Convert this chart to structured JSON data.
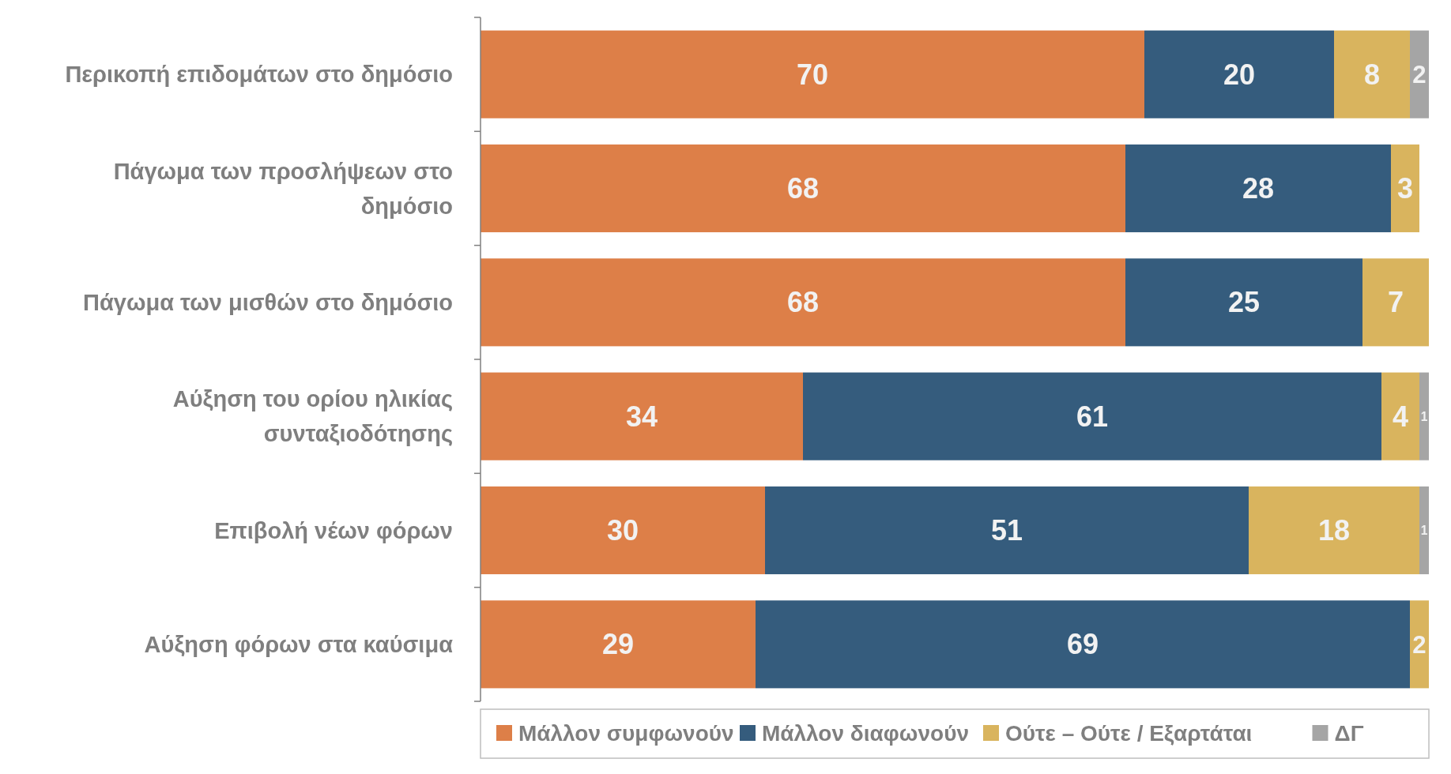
{
  "chart_data": {
    "type": "bar",
    "orientation": "horizontal",
    "stacked": true,
    "data_labels": true,
    "legend": "bottom",
    "categories": [
      "Περικοπή επιδομάτων στο δημόσιο",
      "Πάγωμα των προσλήψεων στο δημόσιο",
      "Πάγωμα των μισθών στο δημόσιο",
      "Αύξηση του ορίου ηλικίας συνταξιοδότησης",
      "Επιβολή νέων φόρων",
      "Αύξηση φόρων στα καύσιμα"
    ],
    "series": [
      {
        "name": "Μάλλον συμφωνούν",
        "color": "#dd7f48",
        "values": [
          70,
          68,
          68,
          34,
          30,
          29
        ]
      },
      {
        "name": "Μάλλον διαφωνούν",
        "color": "#355c7d",
        "values": [
          20,
          28,
          25,
          61,
          51,
          69
        ]
      },
      {
        "name": "Ούτε – Ούτε / Εξαρτάται",
        "color": "#d9b45e",
        "values": [
          8,
          3,
          7,
          4,
          18,
          2
        ]
      },
      {
        "name": "ΔΓ",
        "color": "#a5a5a5",
        "values": [
          2,
          null,
          null,
          1,
          1,
          null
        ]
      }
    ]
  }
}
